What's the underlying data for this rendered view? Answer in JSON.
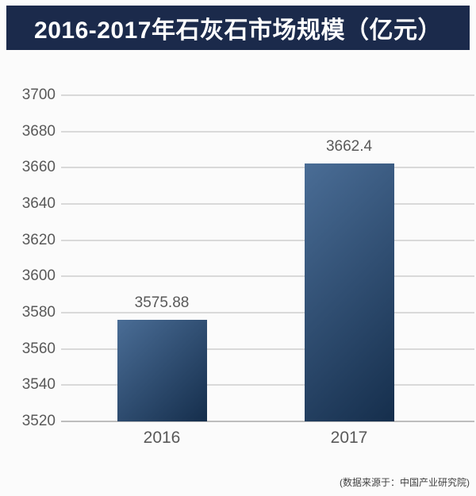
{
  "title": "2016-2017年石灰石市场规模（亿元）",
  "source_note": "(数据来源于：中国产业研究院)",
  "colors": {
    "page_bg": "#fbfbfb",
    "banner_bg": "#1b2a4b",
    "banner_text": "#ffffff",
    "bar_gradient_start": "#4a6d96",
    "bar_gradient_end": "#152e4c",
    "gridline": "#d9d9d9",
    "baseline": "#bdbdbd",
    "axis_text": "#595959",
    "source_text": "#3f3f3f"
  },
  "chart_data": {
    "type": "bar",
    "title": "2016-2017年石灰石市场规模（亿元）",
    "categories": [
      "2016",
      "2017"
    ],
    "values": [
      3575.88,
      3662.4
    ],
    "value_labels": [
      "3575.88",
      "3662.4"
    ],
    "xlabel": "",
    "ylabel": "",
    "ylim": [
      3520,
      3700
    ],
    "ytick_step": 20,
    "yticks": [
      3700,
      3680,
      3660,
      3640,
      3620,
      3600,
      3580,
      3560,
      3540,
      3520
    ],
    "grid": true,
    "legend": false,
    "bar_orientation": "vertical"
  }
}
